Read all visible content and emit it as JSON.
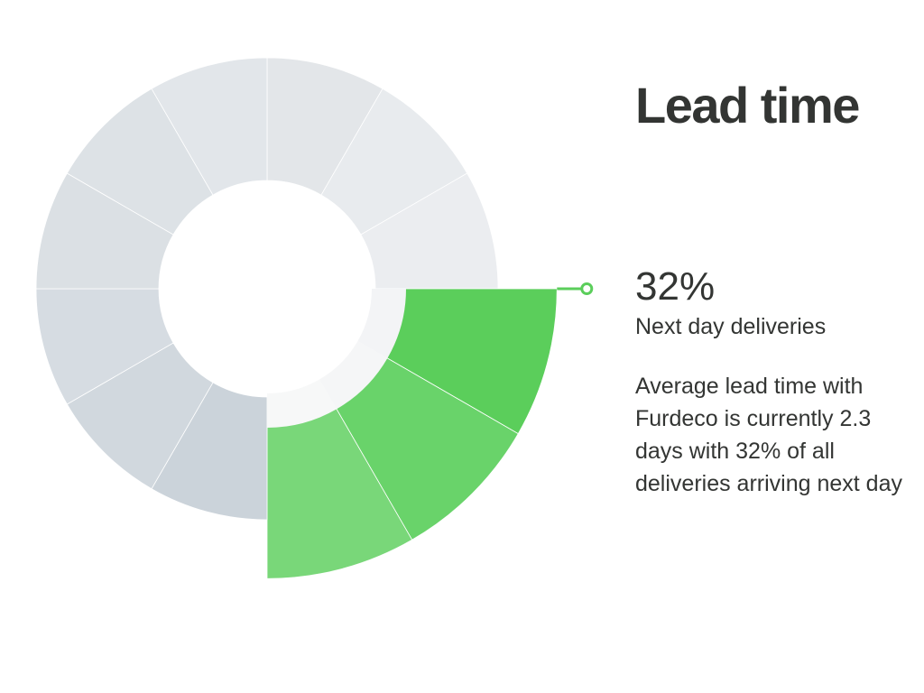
{
  "title": "Lead time",
  "stat": {
    "value": "32%",
    "label": "Next day deliveries"
  },
  "description": "Average lead time with Furdeco is currently 2.3 days with 32% of all deliveries arriving next day",
  "chart_data": {
    "type": "radial-bar",
    "title": "Lead time",
    "highlighted_segments": 3,
    "segments": [
      {
        "value": 1.0,
        "color": "#e3e6e9"
      },
      {
        "value": 1.0,
        "color": "#e8ebee"
      },
      {
        "value": 1.0,
        "color": "#ebedf0"
      },
      {
        "value": 1.48,
        "color": "#5bce5b"
      },
      {
        "value": 1.48,
        "color": "#69d36a"
      },
      {
        "value": 1.48,
        "color": "#79d779"
      },
      {
        "value": 1.0,
        "color": "#cbd3da"
      },
      {
        "value": 1.0,
        "color": "#d1d8de"
      },
      {
        "value": 1.0,
        "color": "#d6dce2"
      },
      {
        "value": 1.0,
        "color": "#dbe0e4"
      },
      {
        "value": 1.0,
        "color": "#dde2e6"
      },
      {
        "value": 1.0,
        "color": "#e2e6ea"
      }
    ],
    "inner_highlight_colors": [
      "#f3f4f6",
      "#f5f6f7",
      "#f7f8f8"
    ],
    "accent_color": "#5bce5b"
  }
}
